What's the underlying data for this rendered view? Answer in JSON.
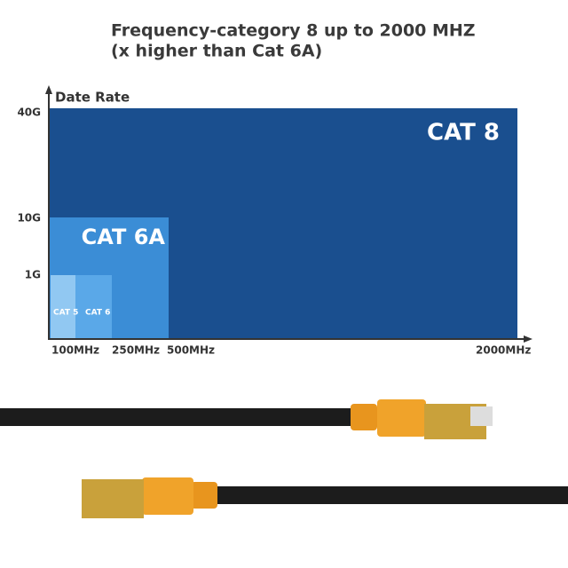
{
  "header": {
    "title": [
      "Frequency-category 8 up to 2000 MHZ",
      "(x higher than Cat 6A)"
    ]
  },
  "axes": {
    "y_title": "Date Rate",
    "y_labels": [
      "40G",
      "10G",
      "1G"
    ],
    "x_labels": [
      "100MHz",
      "250MHz",
      "500MHz",
      "2000MHz"
    ]
  },
  "boxes": [
    "CAT 8",
    "CAT 6A",
    "CAT 6",
    "CAT 5"
  ]
}
